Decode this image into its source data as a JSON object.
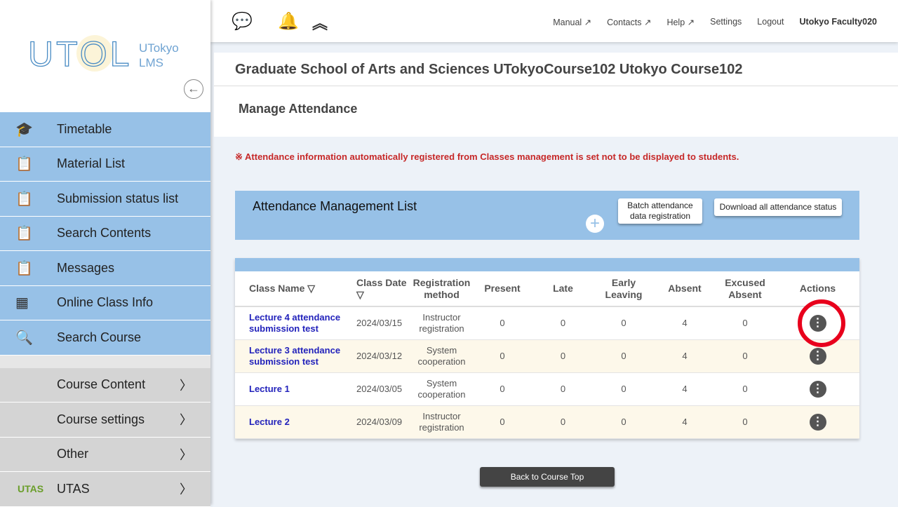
{
  "sidebar": {
    "logo_text": "UTOL",
    "logo_sub1": "UTokyo",
    "logo_sub2": "LMS",
    "items": [
      {
        "label": "Timetable",
        "icon": "graduation-cap-icon"
      },
      {
        "label": "Material List",
        "icon": "clipboard-icon"
      },
      {
        "label": "Submission status list",
        "icon": "clipboard-icon"
      },
      {
        "label": "Search Contents",
        "icon": "clipboard-icon"
      },
      {
        "label": "Messages",
        "icon": "clipboard-icon"
      },
      {
        "label": "Online Class Info",
        "icon": "grid-icon"
      },
      {
        "label": "Search Course",
        "icon": "search-icon"
      }
    ],
    "groups": [
      {
        "label": "Course Content"
      },
      {
        "label": "Course settings"
      },
      {
        "label": "Other"
      },
      {
        "label": "UTAS"
      }
    ]
  },
  "header": {
    "links": [
      "Manual",
      "Contacts",
      "Help",
      "Settings",
      "Logout"
    ],
    "user": "Utokyo Faculty020"
  },
  "course_title": "Graduate School of Arts and Sciences UTokyoCourse102 Utokyo Course102",
  "page_title": "Manage Attendance",
  "notice": "※ Attendance information automatically registered from Classes management is set not to be displayed to students.",
  "list": {
    "title": "Attendance Management List",
    "batch_line1": "Batch attendance",
    "batch_line2": "data registration",
    "download": "Download all attendance status"
  },
  "table": {
    "headers": [
      "Class Name ▽",
      "Class Date ▽",
      "Registration method",
      "Present",
      "Late",
      "Early Leaving",
      "Absent",
      "Excused Absent",
      "Actions"
    ],
    "rows": [
      {
        "name": "Lecture 4 attendance submission test",
        "date": "2024/03/15",
        "method": "Instructor registration",
        "present": "0",
        "late": "0",
        "early": "0",
        "absent": "4",
        "excused": "0"
      },
      {
        "name": "Lecture 3 attendance submission test",
        "date": "2024/03/12",
        "method": "System cooperation",
        "present": "0",
        "late": "0",
        "early": "0",
        "absent": "4",
        "excused": "0"
      },
      {
        "name": "Lecture 1",
        "date": "2024/03/05",
        "method": "System cooperation",
        "present": "0",
        "late": "0",
        "early": "0",
        "absent": "4",
        "excused": "0"
      },
      {
        "name": "Lecture 2",
        "date": "2024/03/09",
        "method": "Instructor registration",
        "present": "0",
        "late": "0",
        "early": "0",
        "absent": "4",
        "excused": "0"
      }
    ]
  },
  "back_button": "Back to Course Top",
  "colors": {
    "accent": "#97c1e7",
    "notice": "#c62828",
    "highlight_ring": "#e8001c"
  }
}
